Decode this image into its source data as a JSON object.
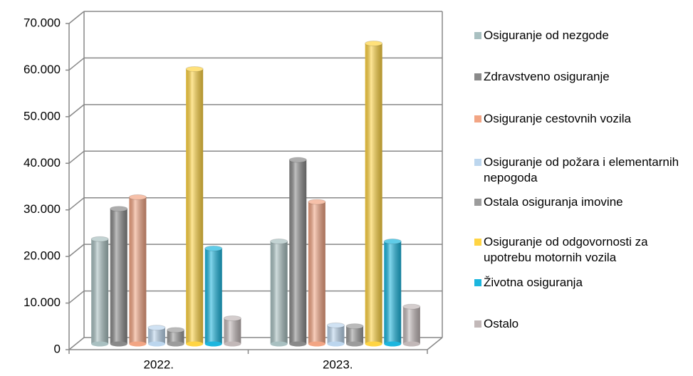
{
  "chart_data": {
    "type": "bar",
    "categories": [
      "2022.",
      "2023."
    ],
    "series": [
      {
        "name": "Osiguranje od nezgode",
        "color": "#a9c0c1",
        "values": [
          22500,
          22000
        ]
      },
      {
        "name": "Zdravstveno osiguranje",
        "color": "#8a8a8a",
        "values": [
          29000,
          39500
        ]
      },
      {
        "name": "Osiguranje cestovnih vozila",
        "color": "#f2a584",
        "values": [
          31500,
          30500
        ]
      },
      {
        "name": "Osiguranje od požara i elementarnih nepogoda",
        "color": "#bcd6ee",
        "values": [
          3500,
          4000
        ]
      },
      {
        "name": "Ostala osiguranja imovine",
        "color": "#9c9c9c",
        "values": [
          3000,
          3800
        ]
      },
      {
        "name": "Osiguranje od odgovornosti za upotrebu motornih vozila",
        "color": "#ffd443",
        "values": [
          59000,
          64500
        ]
      },
      {
        "name": "Životna osiguranja",
        "color": "#1cb6de",
        "values": [
          20500,
          22000
        ]
      },
      {
        "name": "Ostalo",
        "color": "#c2b8b8",
        "values": [
          5500,
          8000
        ]
      }
    ],
    "ylim": [
      0,
      70000
    ],
    "yticks": [
      {
        "value": 0,
        "label": "0"
      },
      {
        "value": 10000,
        "label": "10.000"
      },
      {
        "value": 20000,
        "label": "20.000"
      },
      {
        "value": 30000,
        "label": "30.000"
      },
      {
        "value": 40000,
        "label": "40.000"
      },
      {
        "value": 50000,
        "label": "50.000"
      },
      {
        "value": 60000,
        "label": "60.000"
      },
      {
        "value": 70000,
        "label": "70.000"
      }
    ],
    "grid": true,
    "legend": "right"
  }
}
